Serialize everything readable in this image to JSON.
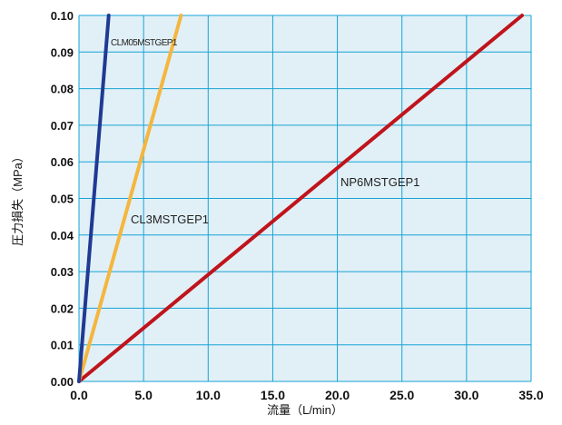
{
  "chart_data": {
    "type": "line",
    "xlabel": "流量（L/min）",
    "ylabel": "圧力損失（MPa）",
    "xlim": [
      0,
      35
    ],
    "ylim": [
      0,
      0.1
    ],
    "x_ticks": [
      "0.0",
      "5.0",
      "10.0",
      "15.0",
      "20.0",
      "25.0",
      "30.0",
      "35.0"
    ],
    "y_ticks": [
      "0.00",
      "0.01",
      "0.02",
      "0.03",
      "0.04",
      "0.05",
      "0.06",
      "0.07",
      "0.08",
      "0.09",
      "0.10"
    ],
    "grid": true,
    "series": [
      {
        "name": "CLM05MSTGEP1",
        "color": "#1f3a93",
        "x": [
          0,
          2.3
        ],
        "y": [
          0,
          0.1
        ]
      },
      {
        "name": "CL3MSTGEP1",
        "color": "#f4b63f",
        "x": [
          0,
          7.9
        ],
        "y": [
          0,
          0.1
        ]
      },
      {
        "name": "NP6MSTGEP1",
        "color": "#c0141c",
        "x": [
          0,
          34.3
        ],
        "y": [
          0,
          0.1
        ]
      }
    ],
    "colors": {
      "plot_background": "#e1f0f7",
      "grid": "#16a3d4"
    }
  }
}
